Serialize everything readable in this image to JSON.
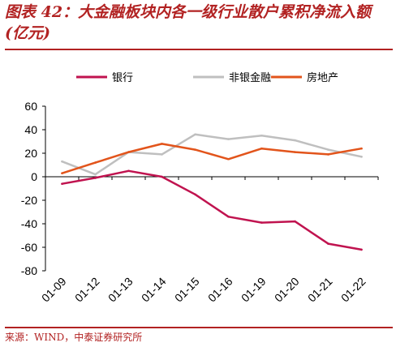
{
  "header": {
    "title": "图表 42：大金融板块内各一级行业散户累积净流入额(亿元)"
  },
  "footer": {
    "source": "来源：WIND，中泰证券研究所"
  },
  "chart_data": {
    "type": "line",
    "title": "",
    "xlabel": "",
    "ylabel": "",
    "categories": [
      "01-09",
      "01-12",
      "01-13",
      "01-14",
      "01-15",
      "01-16",
      "01-19",
      "01-20",
      "01-21",
      "01-22"
    ],
    "ylim": [
      -80,
      60
    ],
    "yticks": [
      60,
      40,
      20,
      0,
      -20,
      -40,
      -60,
      -80
    ],
    "grid": false,
    "legend_position": "top",
    "series": [
      {
        "name": "银行",
        "color": "#c0134f",
        "values": [
          -6,
          -1,
          5,
          0,
          -15,
          -34,
          -39,
          -38,
          -57,
          -62
        ]
      },
      {
        "name": "非银金融",
        "color": "#bfbfbf",
        "values": [
          13,
          2,
          21,
          19,
          36,
          32,
          35,
          31,
          23,
          17
        ]
      },
      {
        "name": "房地产",
        "color": "#e2541b",
        "values": [
          3,
          12,
          21,
          28,
          23,
          15,
          24,
          21,
          19,
          24
        ]
      }
    ]
  }
}
